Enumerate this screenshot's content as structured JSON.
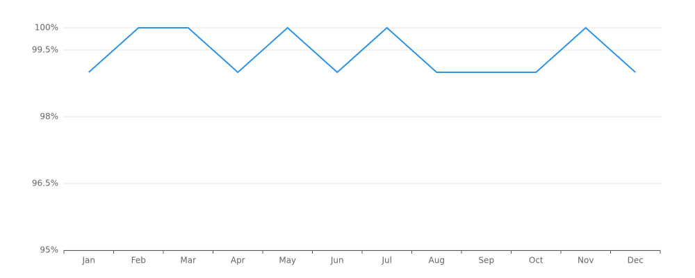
{
  "chart_data": {
    "type": "line",
    "categories": [
      "Jan",
      "Feb",
      "Mar",
      "Apr",
      "May",
      "Jun",
      "Jul",
      "Aug",
      "Sep",
      "Oct",
      "Nov",
      "Dec"
    ],
    "series": [
      {
        "color": "#2e93e6",
        "values": [
          99,
          100,
          100,
          99,
          100,
          99,
          100,
          99,
          99,
          99,
          100,
          99
        ]
      }
    ],
    "ylim": [
      95,
      100
    ],
    "yticks": [
      {
        "value": 95,
        "label": "95%"
      },
      {
        "value": 96.5,
        "label": "96.5%"
      },
      {
        "value": 98,
        "label": "98%"
      },
      {
        "value": 99.5,
        "label": "99.5%"
      },
      {
        "value": 100,
        "label": "100%"
      }
    ],
    "grid": true
  }
}
